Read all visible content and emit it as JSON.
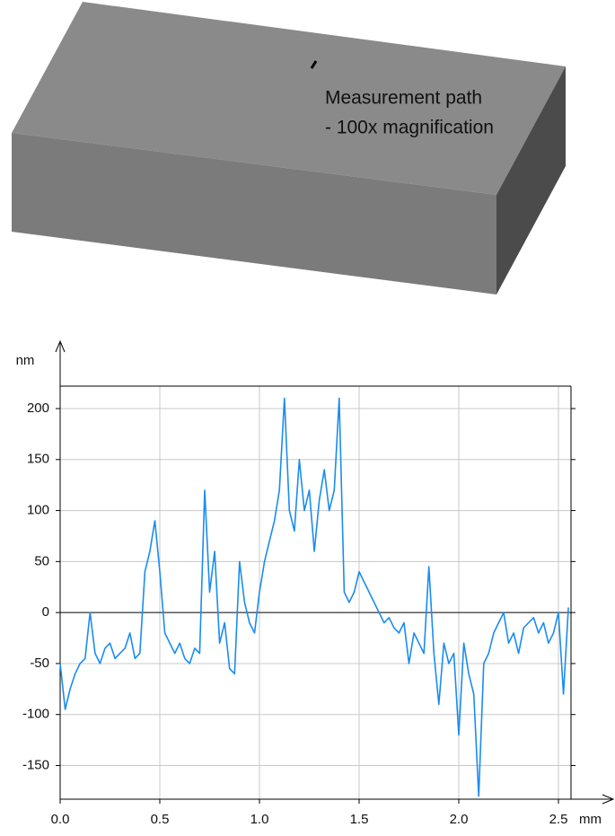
{
  "illustration": {
    "annotation": [
      "Measurement path",
      "- 100x magnification"
    ]
  },
  "chart_data": {
    "type": "line",
    "y_label": "nm",
    "x_label": "mm",
    "x": [
      0,
      0.025,
      0.05,
      0.075,
      0.1,
      0.125,
      0.15,
      0.175,
      0.2,
      0.225,
      0.25,
      0.275,
      0.3,
      0.325,
      0.35,
      0.375,
      0.4,
      0.425,
      0.45,
      0.475,
      0.5,
      0.525,
      0.55,
      0.575,
      0.6,
      0.625,
      0.65,
      0.675,
      0.7,
      0.725,
      0.75,
      0.775,
      0.8,
      0.825,
      0.85,
      0.875,
      0.9,
      0.925,
      0.95,
      0.975,
      1,
      1.025,
      1.05,
      1.075,
      1.1,
      1.125,
      1.15,
      1.175,
      1.2,
      1.225,
      1.25,
      1.275,
      1.3,
      1.325,
      1.35,
      1.375,
      1.4,
      1.425,
      1.45,
      1.475,
      1.5,
      1.525,
      1.55,
      1.575,
      1.6,
      1.625,
      1.65,
      1.675,
      1.7,
      1.725,
      1.75,
      1.775,
      1.8,
      1.825,
      1.85,
      1.875,
      1.9,
      1.925,
      1.95,
      1.975,
      2,
      2.025,
      2.05,
      2.075,
      2.1,
      2.125,
      2.15,
      2.175,
      2.2,
      2.225,
      2.25,
      2.275,
      2.3,
      2.325,
      2.35,
      2.375,
      2.4,
      2.425,
      2.45,
      2.475,
      2.5,
      2.525,
      2.55
    ],
    "values": [
      -50,
      -95,
      -75,
      -60,
      -50,
      -45,
      0,
      -40,
      -50,
      -35,
      -30,
      -45,
      -40,
      -35,
      -20,
      -45,
      -40,
      40,
      60,
      90,
      40,
      -20,
      -30,
      -40,
      -30,
      -45,
      -50,
      -35,
      -40,
      120,
      20,
      60,
      -30,
      -10,
      -55,
      -60,
      50,
      10,
      -10,
      -20,
      20,
      50,
      70,
      90,
      120,
      210,
      100,
      80,
      150,
      100,
      120,
      60,
      110,
      140,
      100,
      120,
      210,
      20,
      10,
      20,
      40,
      30,
      20,
      10,
      0,
      -10,
      -5,
      -15,
      -20,
      -10,
      -50,
      -20,
      -30,
      -40,
      45,
      -40,
      -90,
      -30,
      -50,
      -40,
      -120,
      -30,
      -60,
      -80,
      -180,
      -50,
      -40,
      -20,
      -10,
      0,
      -30,
      -20,
      -40,
      -15,
      -10,
      -5,
      -20,
      -10,
      -30,
      -20,
      0,
      -80,
      5
    ],
    "color": "#1a8cf0",
    "xlim": [
      0,
      2.563
    ],
    "ylim": [
      -183,
      222
    ],
    "xticks": [
      {
        "value": 0,
        "label": "0.0"
      },
      0.5,
      {
        "value": 1,
        "label": "1.0"
      },
      1.5,
      {
        "value": 2,
        "label": "2.0"
      },
      2.5
    ],
    "yticks": [
      -150,
      -100,
      -50,
      0,
      50,
      100,
      150,
      200
    ],
    "grid": true
  }
}
